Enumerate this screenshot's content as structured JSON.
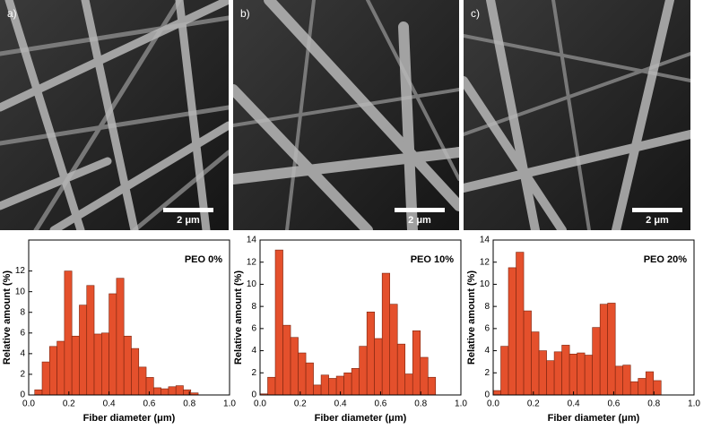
{
  "images": [
    {
      "label": "a)",
      "scale_bar": "2 μm"
    },
    {
      "label": "b)",
      "scale_bar": "2 μm"
    },
    {
      "label": "c)",
      "scale_bar": "2 μm"
    }
  ],
  "chart_data": [
    {
      "type": "histogram",
      "label": "PEO 0%",
      "xlabel": "Fiber diameter (μm)",
      "ylabel": "Relative amount (%)",
      "color": "#e4502c",
      "bins": [
        0.03,
        0.067,
        0.104,
        0.141,
        0.178,
        0.215,
        0.252,
        0.289,
        0.326,
        0.363,
        0.4,
        0.437,
        0.474,
        0.511,
        0.548,
        0.585,
        0.622,
        0.659,
        0.696,
        0.733,
        0.77,
        0.807,
        0.844
      ],
      "values": [
        0.5,
        3.2,
        4.7,
        5.2,
        12,
        5.7,
        8.7,
        10.6,
        5.9,
        6.0,
        9.8,
        11.3,
        5.7,
        4.5,
        2.7,
        1.7,
        0.7,
        0.6,
        0.8,
        0.9,
        0.5,
        0.2
      ],
      "xlim": [
        0,
        1
      ],
      "ylim": [
        0,
        15
      ],
      "xticks": [
        {
          "value": 0,
          "label": "0.0"
        },
        0.2,
        0.4,
        0.6,
        0.8,
        {
          "value": 1,
          "label": "1.0"
        }
      ],
      "yticks": [
        0,
        2,
        4,
        6,
        8,
        10,
        12
      ]
    },
    {
      "type": "histogram",
      "label": "PEO 10%",
      "xlabel": "Fiber diameter (μm)",
      "ylabel": "Relative amount (%)",
      "color": "#e4502c",
      "bins": [
        0.0,
        0.038,
        0.076,
        0.114,
        0.152,
        0.19,
        0.228,
        0.266,
        0.304,
        0.342,
        0.38,
        0.418,
        0.456,
        0.494,
        0.532,
        0.57,
        0.608,
        0.646,
        0.684,
        0.722,
        0.76,
        0.798,
        0.836,
        0.874
      ],
      "values": [
        0.1,
        1.6,
        13.1,
        6.3,
        5.2,
        3.8,
        2.9,
        0.9,
        1.8,
        1.5,
        1.7,
        2.0,
        2.4,
        4.4,
        7.5,
        5.1,
        11.0,
        8.2,
        4.6,
        1.9,
        5.8,
        3.4,
        1.6
      ],
      "xlim": [
        0,
        1
      ],
      "ylim": [
        0,
        14
      ],
      "xticks": [
        {
          "value": 0,
          "label": "0.0"
        },
        0.2,
        0.4,
        0.6,
        0.8,
        {
          "value": 1,
          "label": "1.0"
        }
      ],
      "yticks": [
        0,
        2,
        4,
        6,
        8,
        10,
        12,
        14
      ]
    },
    {
      "type": "histogram",
      "label": "PEO 20%",
      "xlabel": "Fiber diameter (μm)",
      "ylabel": "Relative amount (%)",
      "color": "#e4502c",
      "bins": [
        0.0,
        0.038,
        0.076,
        0.114,
        0.152,
        0.19,
        0.228,
        0.266,
        0.304,
        0.342,
        0.38,
        0.418,
        0.456,
        0.494,
        0.532,
        0.57,
        0.608,
        0.646,
        0.684,
        0.722,
        0.76,
        0.798,
        0.836
      ],
      "values": [
        0.4,
        4.4,
        11.5,
        12.9,
        7.6,
        5.7,
        4.0,
        3.1,
        3.9,
        4.5,
        3.7,
        3.8,
        3.6,
        6.1,
        8.2,
        8.3,
        2.6,
        2.7,
        1.2,
        1.5,
        2.1,
        1.3
      ],
      "xlim": [
        0,
        1
      ],
      "ylim": [
        0,
        14
      ],
      "xticks": [
        {
          "value": 0,
          "label": "0.0"
        },
        0.2,
        0.4,
        0.6,
        0.8,
        {
          "value": 1,
          "label": "1.0"
        }
      ],
      "yticks": [
        0,
        2,
        4,
        6,
        8,
        10,
        12,
        14
      ]
    }
  ]
}
